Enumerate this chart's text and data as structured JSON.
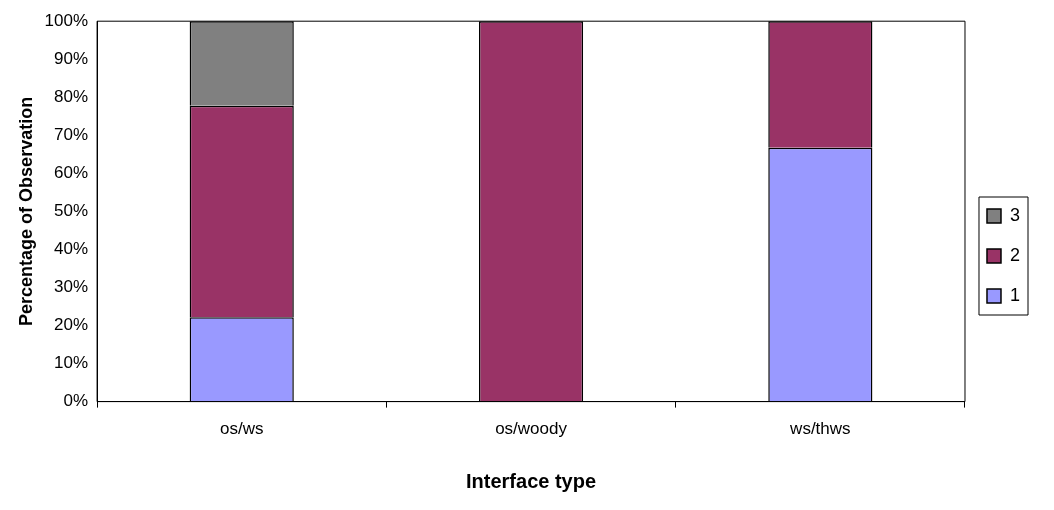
{
  "chart_data": {
    "type": "bar",
    "stacked": true,
    "xlabel": "Interface type",
    "ylabel": "Percentage of Observation",
    "categories": [
      "os/ws",
      "os/woody",
      "ws/thws"
    ],
    "series": [
      {
        "name": "1",
        "color": "#9999ff",
        "values": [
          22.2,
          0,
          66.7
        ]
      },
      {
        "name": "2",
        "color": "#993366",
        "values": [
          55.6,
          100,
          33.3
        ]
      },
      {
        "name": "3",
        "color": "#808080",
        "values": [
          22.2,
          0,
          0
        ]
      }
    ],
    "ylim": [
      0,
      100
    ],
    "yticks": [
      {
        "value": 0,
        "label": "0%"
      },
      {
        "value": 10,
        "label": "10%"
      },
      {
        "value": 20,
        "label": "20%"
      },
      {
        "value": 30,
        "label": "30%"
      },
      {
        "value": 40,
        "label": "40%"
      },
      {
        "value": 50,
        "label": "50%"
      },
      {
        "value": 60,
        "label": "60%"
      },
      {
        "value": 70,
        "label": "70%"
      },
      {
        "value": 80,
        "label": "80%"
      },
      {
        "value": 90,
        "label": "90%"
      },
      {
        "value": 100,
        "label": "100%"
      }
    ],
    "legend": "right",
    "grid": false
  }
}
